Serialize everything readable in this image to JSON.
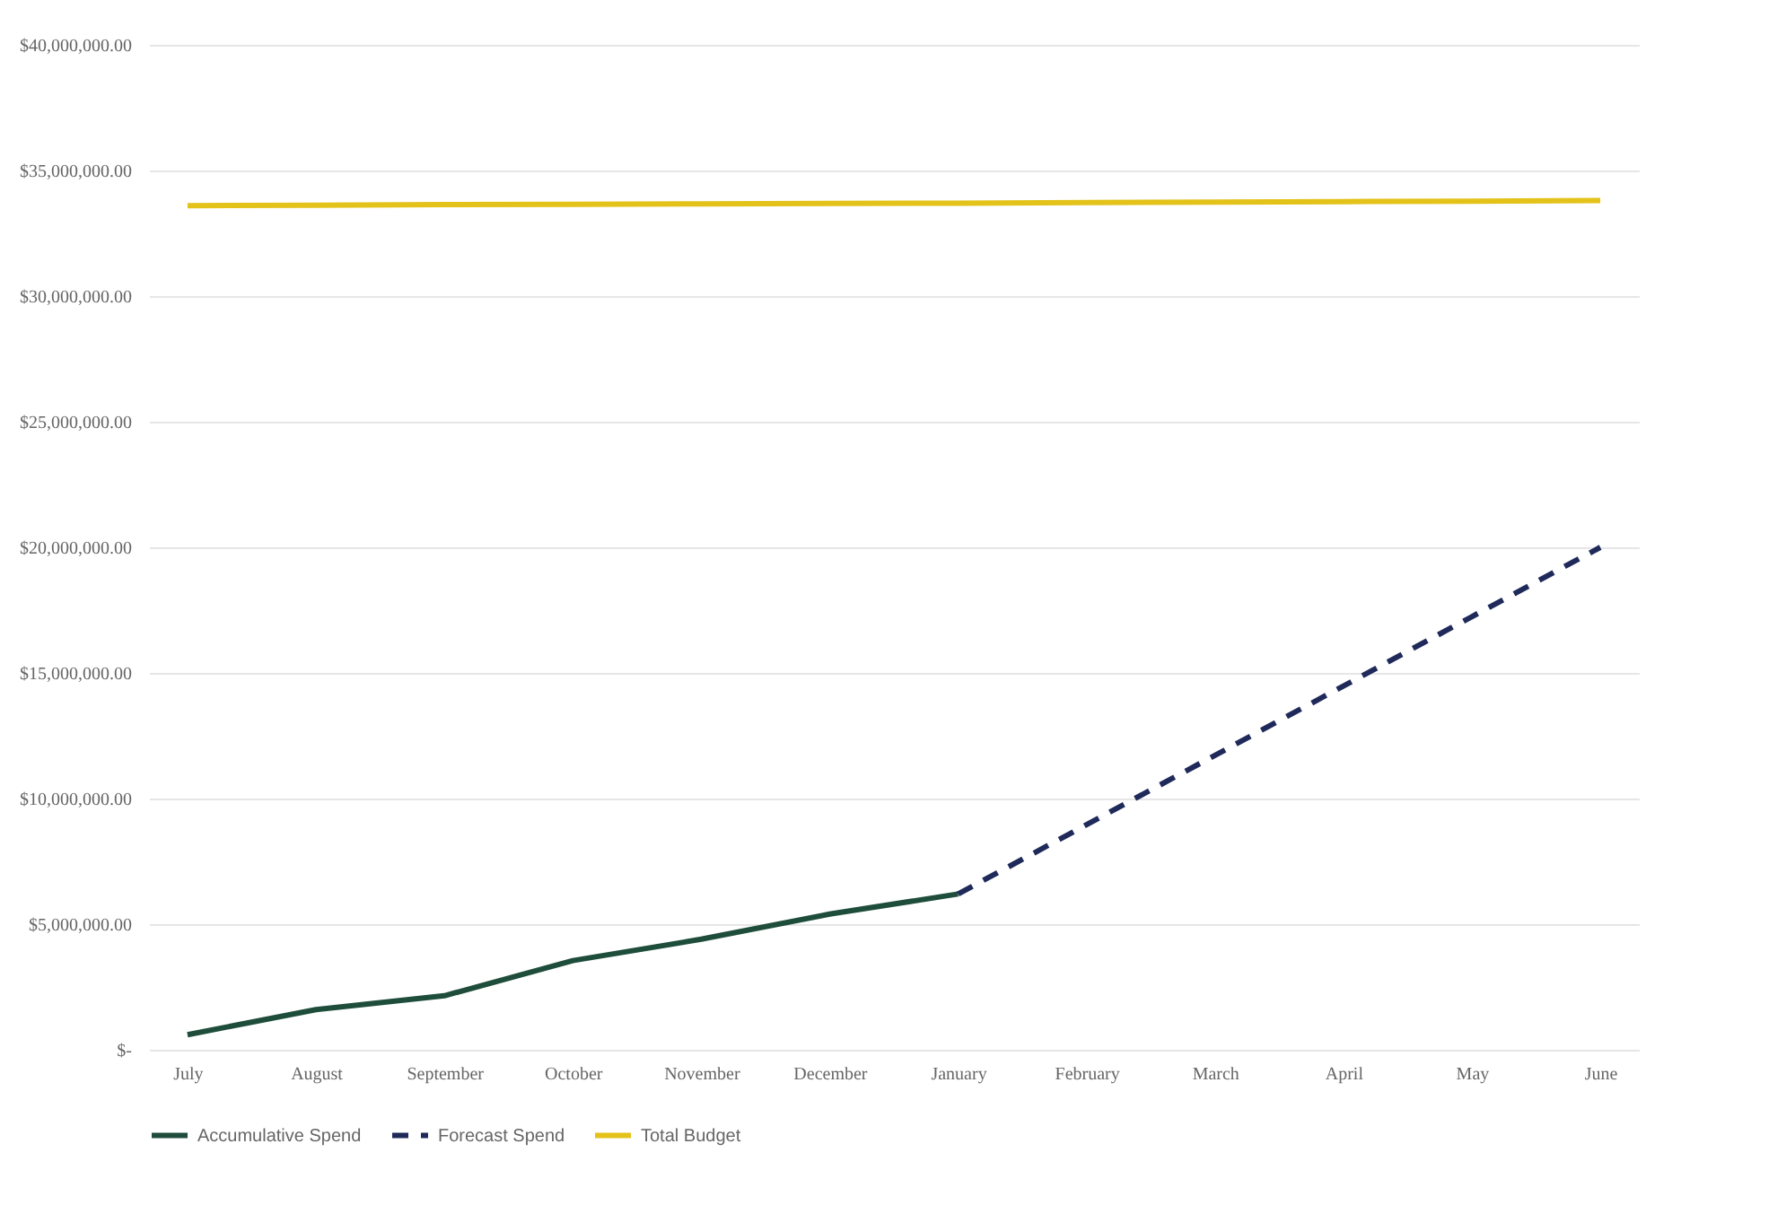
{
  "chart_data": {
    "type": "line",
    "categories": [
      "July",
      "August",
      "September",
      "October",
      "November",
      "December",
      "January",
      "February",
      "March",
      "April",
      "May",
      "June"
    ],
    "series": [
      {
        "name": "Accumulative Spend",
        "color": "#1e4d3b",
        "line_style": "solid",
        "values": [
          600000,
          1600000,
          2150000,
          3550000,
          4400000,
          5400000,
          6200000,
          null,
          null,
          null,
          null,
          null
        ]
      },
      {
        "name": "Forecast Spend",
        "color": "#1f2a5a",
        "line_style": "dashed",
        "values": [
          null,
          null,
          null,
          null,
          null,
          null,
          6200000,
          8960000,
          11720000,
          14480000,
          17240000,
          20000000
        ]
      },
      {
        "name": "Total Budget",
        "color": "#e3c21a",
        "line_style": "solid",
        "values": [
          33600000,
          33620000,
          33640000,
          33650000,
          33670000,
          33690000,
          33700000,
          33720000,
          33740000,
          33760000,
          33780000,
          33800000
        ]
      }
    ],
    "ylim": [
      0,
      40000000
    ],
    "yticks": [
      {
        "value": 0,
        "label": "$-"
      },
      {
        "value": 5000000,
        "label": "$5,000,000.00"
      },
      {
        "value": 10000000,
        "label": "$10,000,000.00"
      },
      {
        "value": 15000000,
        "label": "$15,000,000.00"
      },
      {
        "value": 20000000,
        "label": "$20,000,000.00"
      },
      {
        "value": 25000000,
        "label": "$25,000,000.00"
      },
      {
        "value": 30000000,
        "label": "$30,000,000.00"
      },
      {
        "value": 35000000,
        "label": "$35,000,000.00"
      },
      {
        "value": 40000000,
        "label": "$40,000,000.00"
      }
    ],
    "grid": "y",
    "legend": "bottom"
  }
}
